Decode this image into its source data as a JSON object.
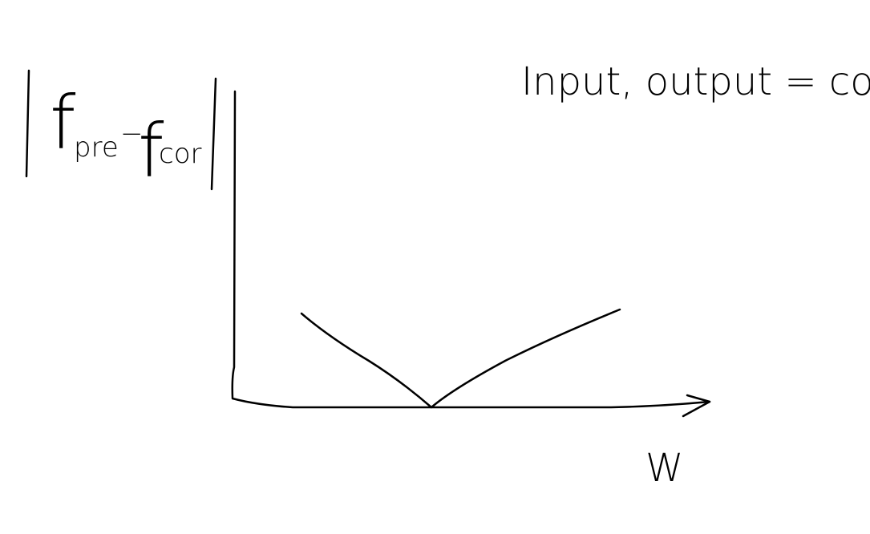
{
  "annotation": "Input, output = const",
  "y_axis_label": {
    "f1": "f",
    "sub1": "pre",
    "op": "−",
    "f2": "f",
    "sub2": "cor"
  },
  "x_axis_label": "W"
}
